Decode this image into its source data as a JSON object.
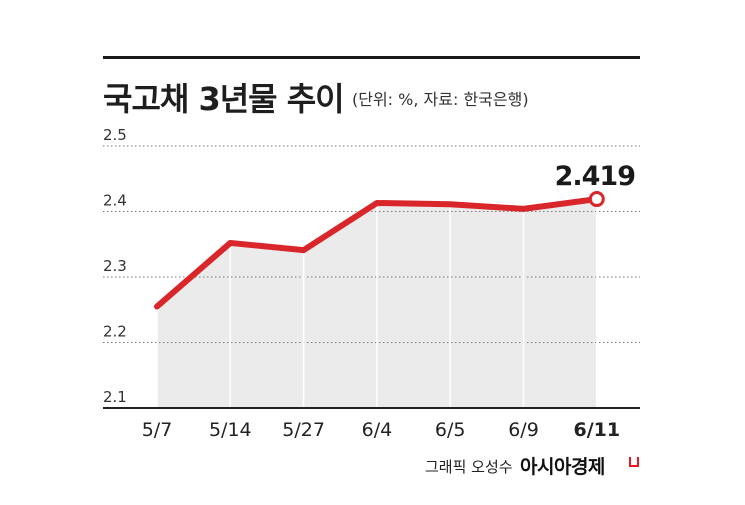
{
  "header": {
    "title": "국고채 3년물 추이",
    "unit_note": "(단위: %, 자료: 한국은행)"
  },
  "footer": {
    "credit": "그래픽 오성수",
    "brand": "아시아경제"
  },
  "colors": {
    "line": "#d9262b",
    "area": "#ebebeb",
    "grid": "#7a7a7a",
    "axis": "#222222",
    "rule": "#1a1a1a"
  },
  "chart_data": {
    "type": "area",
    "title": "국고채 3년물 추이",
    "categories": [
      "5/7",
      "5/14",
      "5/27",
      "6/4",
      "6/5",
      "6/9",
      "6/11"
    ],
    "series": [
      {
        "values": [
          2.255,
          2.352,
          2.341,
          2.413,
          2.411,
          2.404,
          2.419
        ]
      }
    ],
    "yticks": [
      "2.1",
      "2.2",
      "2.3",
      "2.4",
      "2.5"
    ],
    "ylim": [
      2.1,
      2.5
    ],
    "grid": true,
    "annotation": {
      "label": "2.419",
      "index": 6
    },
    "highlight_last_category": true
  }
}
